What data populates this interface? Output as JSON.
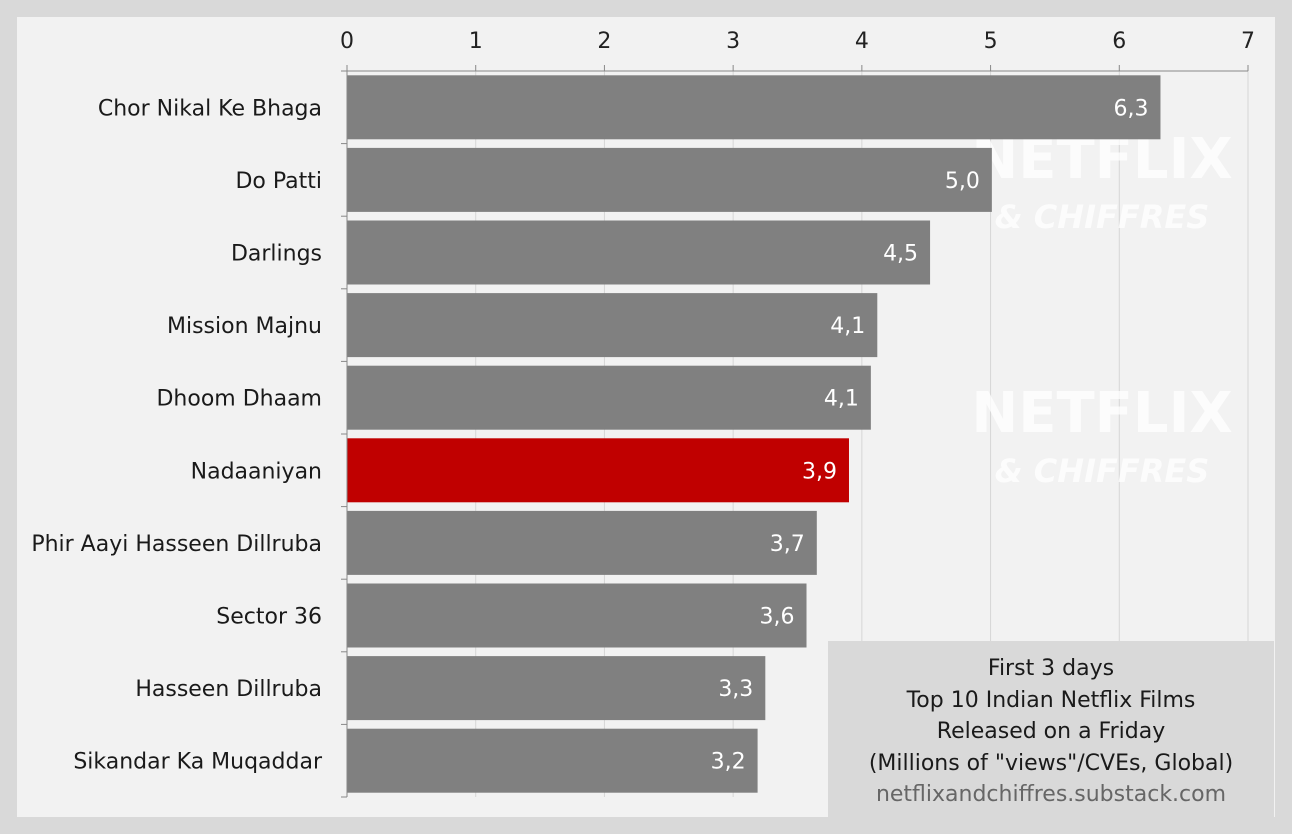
{
  "chart_data": {
    "type": "bar",
    "orientation": "horizontal",
    "categories": [
      "Chor Nikal Ke Bhaga",
      "Do Patti",
      "Darlings",
      "Mission Majnu",
      "Dhoom Dhaam",
      "Nadaaniyan",
      "Phir Aayi Hasseen Dillruba",
      "Sector 36",
      "Hasseen Dillruba",
      "Sikandar Ka Muqaddar"
    ],
    "values": [
      6.32,
      5.01,
      4.53,
      4.12,
      4.07,
      3.9,
      3.65,
      3.57,
      3.25,
      3.19
    ],
    "value_labels": [
      "6,3",
      "5,0",
      "4,5",
      "4,1",
      "4,1",
      "3,9",
      "3,7",
      "3,6",
      "3,3",
      "3,2"
    ],
    "highlight_category": "Nadaaniyan",
    "xlim": [
      0,
      7
    ],
    "x_ticks": [
      0,
      1,
      2,
      3,
      4,
      5,
      6,
      7
    ],
    "x_axis_position": "top",
    "grid": true,
    "colors": {
      "bar": "#808080",
      "highlight": "#c00000",
      "plot_background": "#f2f2f2",
      "frame": "#d9d9d9"
    },
    "caption_lines": [
      "First 3 days",
      "Top 10 Indian Netflix Films",
      "Released on a Friday",
      "(Millions of \"views\"/CVEs, Global)"
    ],
    "source": "netflixandchiffres.substack.com",
    "watermark": {
      "brand": "NETFLIX",
      "tagline": "& CHIFFRES"
    }
  }
}
